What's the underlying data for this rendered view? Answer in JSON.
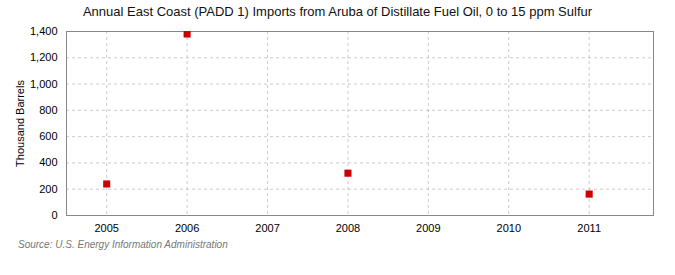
{
  "chart_data": {
    "type": "scatter",
    "title": "Annual East Coast (PADD 1) Imports from Aruba of Distillate Fuel Oil, 0 to 15 ppm Sulfur",
    "ylabel": "Thousand Barrels",
    "annotations": [
      "Source: U.S. Energy Information Administration"
    ],
    "x": [
      2005,
      2006,
      2008,
      2011
    ],
    "values": [
      240,
      1381,
      322,
      163
    ],
    "color": "#cc0000",
    "marker": "square",
    "xlim": [
      2004.5,
      2011.8
    ],
    "xticks": [
      2005,
      2006,
      2007,
      2008,
      2009,
      2010,
      2011
    ],
    "ylim": [
      0,
      1400
    ],
    "yticks": [
      0,
      200,
      400,
      600,
      800,
      {
        "value": 1000,
        "label": "1,000"
      },
      {
        "value": 1200,
        "label": "1,200"
      },
      {
        "value": 1400,
        "label": "1,400"
      }
    ],
    "grid": true
  }
}
